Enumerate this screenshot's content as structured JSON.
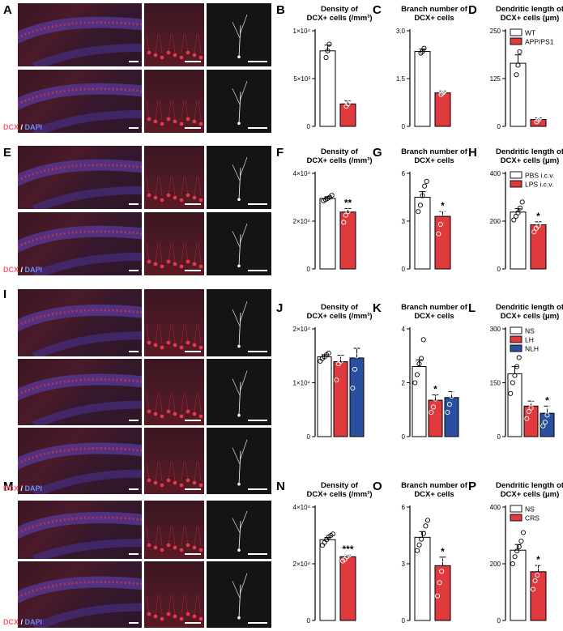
{
  "panel_letters": [
    "A",
    "B",
    "C",
    "D",
    "E",
    "F",
    "G",
    "H",
    "I",
    "J",
    "K",
    "L",
    "M",
    "N",
    "O",
    "P"
  ],
  "micro_rows": [
    {
      "group_label": "WT",
      "has_dcx": false
    },
    {
      "group_label": "APP/PS1",
      "has_dcx": true
    },
    {
      "group_label": "PBS i.c.v.",
      "has_dcx": false
    },
    {
      "group_label": "LPS i.c.v.",
      "has_dcx": true
    },
    {
      "group_label": "NS",
      "has_dcx": false
    },
    {
      "group_label": "LH",
      "has_dcx": false
    },
    {
      "group_label": "NLH",
      "has_dcx": true
    },
    {
      "group_label": "NS",
      "has_dcx": false
    },
    {
      "group_label": "CRS",
      "has_dcx": true
    }
  ],
  "stain_label": {
    "dcx": "DCX",
    "sep": " / ",
    "dapi": "DAPI"
  },
  "colors": {
    "white_bar": "#ffffff",
    "red_bar": "#e03a3e",
    "blue_bar": "#2a4f9e",
    "dcx_text": "#ff5a6e",
    "dapi_text": "#6d8cff"
  },
  "chart_data": [
    {
      "panel": "B",
      "type": "bar",
      "title": [
        "Density of",
        "DCX+ cells (/mm³)"
      ],
      "yticks": [
        "0",
        "5×10³",
        "1×10⁴"
      ],
      "ylim": [
        0,
        10000
      ],
      "categories": [
        "WT",
        "APP/PS1"
      ],
      "values": [
        7900,
        2350
      ],
      "errors": [
        600,
        300
      ],
      "points": [
        [
          7200,
          7900,
          8600
        ],
        [
          2100,
          2350,
          2800
        ]
      ],
      "sig": [
        "",
        ""
      ],
      "legend": []
    },
    {
      "panel": "C",
      "type": "bar",
      "title": [
        "Branch number of",
        "DCX+ cells"
      ],
      "yticks": [
        "0",
        "1.5",
        "3.0"
      ],
      "ylim": [
        0,
        3
      ],
      "categories": [
        "WT",
        "APP/PS1"
      ],
      "values": [
        2.35,
        1.05
      ],
      "errors": [
        0.08,
        0.06
      ],
      "points": [
        [
          2.3,
          2.35,
          2.45
        ],
        [
          1.0,
          1.05,
          1.1
        ]
      ],
      "sig": [
        "",
        ""
      ],
      "legend": []
    },
    {
      "panel": "D",
      "type": "bar",
      "title": [
        "Dendritic length of",
        "DCX+ cells (μm)"
      ],
      "yticks": [
        "0",
        "125",
        "250"
      ],
      "ylim": [
        0,
        250
      ],
      "categories": [
        "WT",
        "APP/PS1"
      ],
      "values": [
        165,
        18
      ],
      "errors": [
        22,
        4
      ],
      "points": [
        [
          135,
          160,
          195
        ],
        [
          12,
          17,
          22
        ]
      ],
      "sig": [
        "",
        ""
      ],
      "legend": [
        "WT",
        "APP/PS1"
      ]
    },
    {
      "panel": "F",
      "type": "bar",
      "title": [
        "Density of",
        "DCX+ cells (/mm³)"
      ],
      "yticks": [
        "0",
        "2×10⁴",
        "4×10⁴"
      ],
      "ylim": [
        0,
        40000
      ],
      "categories": [
        "PBS i.c.v.",
        "LPS i.c.v."
      ],
      "values": [
        29500,
        23800
      ],
      "errors": [
        700,
        1500
      ],
      "points": [
        [
          28500,
          29000,
          29500,
          30000,
          30800
        ],
        [
          19500,
          22500,
          24000,
          25500,
          27500
        ]
      ],
      "sig": [
        "",
        "**"
      ],
      "legend": []
    },
    {
      "panel": "G",
      "type": "bar",
      "title": [
        "Branch number of",
        "DCX+ cells"
      ],
      "yticks": [
        "0",
        "3",
        "6"
      ],
      "ylim": [
        0,
        6
      ],
      "categories": [
        "PBS i.c.v.",
        "LPS i.c.v."
      ],
      "values": [
        4.5,
        3.3
      ],
      "errors": [
        0.35,
        0.3
      ],
      "points": [
        [
          3.6,
          4.0,
          4.6,
          5.2,
          5.5
        ],
        [
          2.2,
          2.8,
          3.5,
          3.7,
          4.1
        ]
      ],
      "sig": [
        "",
        "*"
      ],
      "legend": []
    },
    {
      "panel": "H",
      "type": "bar",
      "title": [
        "Dendritic length of",
        "DCX+ cells (μm)"
      ],
      "yticks": [
        "0",
        "200",
        "400"
      ],
      "ylim": [
        0,
        400
      ],
      "categories": [
        "PBS i.c.v.",
        "LPS i.c.v."
      ],
      "values": [
        238,
        185
      ],
      "errors": [
        14,
        12
      ],
      "points": [
        [
          205,
          220,
          235,
          255,
          280
        ],
        [
          155,
          170,
          180,
          195,
          210
        ]
      ],
      "sig": [
        "",
        "*"
      ],
      "legend": [
        "PBS i.c.v.",
        "LPS i.c.v."
      ]
    },
    {
      "panel": "J",
      "type": "bar",
      "title": [
        "Density of",
        "DCX+ cells (/mm³)"
      ],
      "yticks": [
        "0",
        "1×10⁴",
        "2×10⁴"
      ],
      "ylim": [
        0,
        20000
      ],
      "categories": [
        "NS",
        "LH",
        "NLH"
      ],
      "values": [
        14800,
        13900,
        14600
      ],
      "errors": [
        400,
        1200,
        1800
      ],
      "points": [
        [
          14000,
          14500,
          14800,
          15200,
          15500
        ],
        [
          10500,
          13500,
          14000,
          15000,
          16500
        ],
        [
          9000,
          12500,
          15000,
          16500,
          17500
        ]
      ],
      "sig": [
        "",
        "",
        ""
      ],
      "legend": []
    },
    {
      "panel": "K",
      "type": "bar",
      "title": [
        "Branch number of",
        "DCX+ cells"
      ],
      "yticks": [
        "0",
        "2",
        "4"
      ],
      "ylim": [
        0,
        4
      ],
      "categories": [
        "NS",
        "LH",
        "NLH"
      ],
      "values": [
        2.6,
        1.35,
        1.45
      ],
      "errors": [
        0.25,
        0.2,
        0.22
      ],
      "points": [
        [
          2.0,
          2.3,
          2.7,
          2.9,
          3.6
        ],
        [
          0.9,
          1.1,
          1.4,
          1.6,
          1.8
        ],
        [
          0.9,
          1.2,
          1.5,
          1.6,
          2.4
        ]
      ],
      "sig": [
        "",
        "*",
        ""
      ],
      "legend": []
    },
    {
      "panel": "L",
      "type": "bar",
      "title": [
        "Dendritic length of",
        "DCX+ cells (μm)"
      ],
      "yticks": [
        "0",
        "150",
        "300"
      ],
      "ylim": [
        0,
        300
      ],
      "categories": [
        "NS",
        "LH",
        "NLH"
      ],
      "values": [
        175,
        85,
        65
      ],
      "errors": [
        20,
        14,
        20
      ],
      "points": [
        [
          120,
          150,
          170,
          195,
          220
        ],
        [
          50,
          70,
          80,
          95,
          120
        ],
        [
          30,
          40,
          60,
          80,
          110
        ]
      ],
      "sig": [
        "",
        "",
        "*"
      ],
      "legend": [
        "NS",
        "LH",
        "NLH"
      ]
    },
    {
      "panel": "N",
      "type": "bar",
      "title": [
        "Density of",
        "DCX+ cells (/mm³)"
      ],
      "yticks": [
        "0",
        "2×10⁴",
        "4×10⁴"
      ],
      "ylim": [
        0,
        40000
      ],
      "categories": [
        "NS",
        "CRS"
      ],
      "values": [
        28500,
        22500
      ],
      "errors": [
        800,
        600
      ],
      "points": [
        [
          26500,
          27500,
          28500,
          29500,
          30000,
          30500
        ],
        [
          21000,
          21500,
          22500,
          23000,
          23500,
          24000
        ]
      ],
      "sig": [
        "",
        "***"
      ],
      "legend": []
    },
    {
      "panel": "O",
      "type": "bar",
      "title": [
        "Branch number of",
        "DCX+ cells"
      ],
      "yticks": [
        "0",
        "3",
        "6"
      ],
      "ylim": [
        0,
        6
      ],
      "categories": [
        "NS",
        "CRS"
      ],
      "values": [
        4.4,
        2.9
      ],
      "errors": [
        0.3,
        0.45
      ],
      "points": [
        [
          3.7,
          4.0,
          4.3,
          4.6,
          5.0,
          5.3
        ],
        [
          1.3,
          2.0,
          2.6,
          3.2,
          3.6,
          4.4
        ]
      ],
      "sig": [
        "",
        "*"
      ],
      "legend": []
    },
    {
      "panel": "P",
      "type": "bar",
      "title": [
        "Dendritic length of",
        "DCX+ cells (μm)"
      ],
      "yticks": [
        "0",
        "200",
        "400"
      ],
      "ylim": [
        0,
        400
      ],
      "categories": [
        "NS",
        "CRS"
      ],
      "values": [
        248,
        172
      ],
      "errors": [
        20,
        22
      ],
      "points": [
        [
          200,
          225,
          245,
          260,
          280,
          310
        ],
        [
          110,
          140,
          160,
          190,
          215,
          250
        ]
      ],
      "sig": [
        "",
        "*"
      ],
      "legend": [
        "NS",
        "CRS"
      ]
    }
  ]
}
